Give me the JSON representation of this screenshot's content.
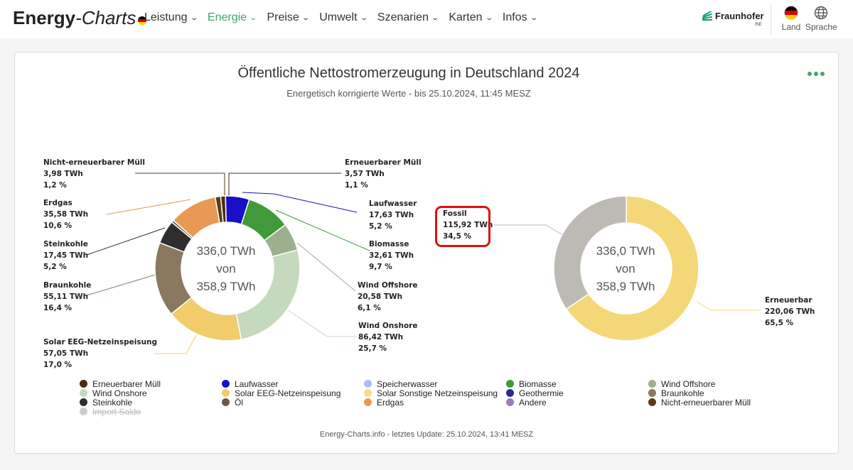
{
  "header": {
    "logo_bold": "Energy",
    "logo_italic": "-Charts",
    "nav": [
      {
        "label": "Leistung",
        "active": false
      },
      {
        "label": "Energie",
        "active": true
      },
      {
        "label": "Preise",
        "active": false
      },
      {
        "label": "Umwelt",
        "active": false
      },
      {
        "label": "Szenarien",
        "active": false
      },
      {
        "label": "Karten",
        "active": false
      },
      {
        "label": "Infos",
        "active": false
      }
    ],
    "brand": "Fraunhofer",
    "brand_sub": "ISE",
    "country_label": "Land",
    "language_label": "Sprache"
  },
  "chart": {
    "title": "Öffentliche Nettostromerzeugung in Deutschland 2024",
    "subtitle": "Energetisch korrigierte Werte - bis 25.10.2024, 11:45 MESZ"
  },
  "chart_data": [
    {
      "type": "pie",
      "variant": "donut",
      "center": {
        "line1": "336,0 TWh",
        "line2": "von",
        "line3": "358,9 TWh"
      },
      "unit": "TWh",
      "slices": [
        {
          "name": "Erneuerbarer Müll",
          "value": 3.57,
          "value_label": "3,57 TWh",
          "pct_label": "1,1 %",
          "color": "#4a2c10"
        },
        {
          "name": "Laufwasser",
          "value": 17.63,
          "value_label": "17,63 TWh",
          "pct_label": "5,2 %",
          "color": "#1a0fc8"
        },
        {
          "name": "Biomasse",
          "value": 32.61,
          "value_label": "32,61 TWh",
          "pct_label": "9,7 %",
          "color": "#419a3a"
        },
        {
          "name": "Wind Offshore",
          "value": 20.58,
          "value_label": "20,58 TWh",
          "pct_label": "6,1 %",
          "color": "#9caf8f"
        },
        {
          "name": "Wind Onshore",
          "value": 86.42,
          "value_label": "86,42 TWh",
          "pct_label": "25,7 %",
          "color": "#c5d9bd"
        },
        {
          "name": "Solar EEG-Netzeinspeisung",
          "value": 57.05,
          "value_label": "57,05 TWh",
          "pct_label": "17,0 %",
          "color": "#f2cc6b"
        },
        {
          "name": "Braunkohle",
          "value": 55.11,
          "value_label": "55,11 TWh",
          "pct_label": "16,4 %",
          "color": "#8a7860"
        },
        {
          "name": "Steinkohle",
          "value": 17.45,
          "value_label": "17,45 TWh",
          "pct_label": "5,2 %",
          "color": "#2e2e2e"
        },
        {
          "name": "Öl",
          "value": 1.8,
          "value_label": "",
          "pct_label": "",
          "color": "#6d5a45"
        },
        {
          "name": "Erdgas",
          "value": 35.58,
          "value_label": "35,58 TWh",
          "pct_label": "10,6 %",
          "color": "#e89a55"
        },
        {
          "name": "Nicht-erneuerbarer Müll",
          "value": 3.98,
          "value_label": "3,98 TWh",
          "pct_label": "1,2 %",
          "color": "#5a3a18"
        }
      ]
    },
    {
      "type": "pie",
      "variant": "donut",
      "center": {
        "line1": "336,0 TWh",
        "line2": "von",
        "line3": "358,9 TWh"
      },
      "unit": "TWh",
      "slices": [
        {
          "name": "Erneuerbar",
          "value": 220.06,
          "value_label": "220,06 TWh",
          "pct_label": "65,5 %",
          "color": "#f4d878"
        },
        {
          "name": "Fossil",
          "value": 115.92,
          "value_label": "115,92 TWh",
          "pct_label": "34,5 %",
          "color": "#bdb9b5"
        }
      ]
    }
  ],
  "legend": [
    {
      "label": "Erneuerbarer Müll",
      "color": "#4a2c10",
      "enabled": true
    },
    {
      "label": "Laufwasser",
      "color": "#1a0fc8",
      "enabled": true
    },
    {
      "label": "Speicherwasser",
      "color": "#a9bff0",
      "enabled": true
    },
    {
      "label": "Biomasse",
      "color": "#419a3a",
      "enabled": true
    },
    {
      "label": "Wind Offshore",
      "color": "#9caf8f",
      "enabled": true
    },
    {
      "label": "Wind Onshore",
      "color": "#c5d9bd",
      "enabled": true
    },
    {
      "label": "Solar EEG-Netzeinspeisung",
      "color": "#f2cc6b",
      "enabled": true
    },
    {
      "label": "Solar Sonstige Netzeinspeisung",
      "color": "#f4dd88",
      "enabled": true
    },
    {
      "label": "Geothermie",
      "color": "#2a2a8c",
      "enabled": true
    },
    {
      "label": "Braunkohle",
      "color": "#8a7860",
      "enabled": true
    },
    {
      "label": "Steinkohle",
      "color": "#2e2e2e",
      "enabled": true
    },
    {
      "label": "Öl",
      "color": "#6d5a45",
      "enabled": true
    },
    {
      "label": "Erdgas",
      "color": "#e89a55",
      "enabled": true
    },
    {
      "label": "Andere",
      "color": "#9b7fb3",
      "enabled": true
    },
    {
      "label": "Nicht-erneuerbarer Müll",
      "color": "#5a3a18",
      "enabled": true
    },
    {
      "label": "Import Saldo",
      "color": "#cccccc",
      "enabled": false
    }
  ],
  "footer": "Energy-Charts.info - letztes Update: 25.10.2024, 13:41 MESZ"
}
